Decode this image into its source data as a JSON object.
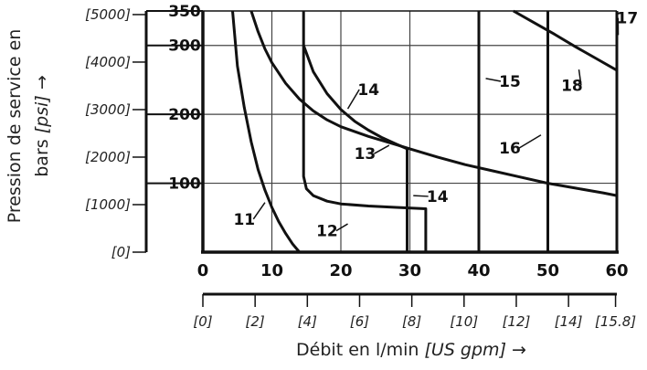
{
  "chart_data": {
    "type": "line",
    "ylabel_line1": "Pression de service en",
    "ylabel_line2_pre": "bars ",
    "ylabel_line2_unit": "[psi]",
    "ylabel_line2_arrow": " →",
    "xlabel_pre": "Débit en l/min ",
    "xlabel_unit": "[US gpm]",
    "xlabel_arrow": " →",
    "x_range": [
      0,
      60
    ],
    "y_range": [
      0,
      350
    ],
    "x_ticks": [
      "0",
      "10",
      "20",
      "30",
      "40",
      "50",
      "60"
    ],
    "x_tick_values": [
      0,
      10,
      20,
      30,
      40,
      50,
      60
    ],
    "y_ticks_bar": [
      "100",
      "200",
      "300",
      "350"
    ],
    "y_tick_values_bar": [
      100,
      200,
      300,
      350
    ],
    "y_ticks_psi": [
      "[0]",
      "[1000]",
      "[2000]",
      "[3000]",
      "[4000]",
      "[5000]"
    ],
    "y_tick_values_psi": [
      0,
      1000,
      2000,
      3000,
      4000,
      5000
    ],
    "x_ticks_gpm": [
      "[0]",
      "[2]",
      "[4]",
      "[6]",
      "[8]",
      "[10]",
      "[12]",
      "[14]",
      "[15.8]"
    ],
    "x_tick_values_gpm": [
      0,
      2,
      4,
      6,
      8,
      10,
      12,
      14,
      15.8
    ],
    "grid": true,
    "series": [
      {
        "name": "11",
        "points": [
          [
            4.3,
            350
          ],
          [
            5,
            270
          ],
          [
            6,
            210
          ],
          [
            7,
            160
          ],
          [
            8,
            120
          ],
          [
            9,
            90
          ],
          [
            10,
            65
          ],
          [
            11,
            44
          ],
          [
            12,
            27
          ],
          [
            13,
            12
          ],
          [
            14,
            0
          ]
        ]
      },
      {
        "name": "12",
        "points": [
          [
            14.6,
            350
          ],
          [
            14.6,
            250
          ],
          [
            14.6,
            110
          ],
          [
            15,
            92
          ],
          [
            16,
            82
          ],
          [
            18,
            74
          ],
          [
            20,
            70
          ],
          [
            24,
            67
          ],
          [
            28,
            65
          ],
          [
            32.3,
            63
          ],
          [
            32.3,
            0
          ]
        ]
      },
      {
        "name": "13",
        "points": [
          [
            7,
            350
          ],
          [
            8,
            320
          ],
          [
            9,
            295
          ],
          [
            10,
            275
          ],
          [
            12,
            245
          ],
          [
            14,
            222
          ],
          [
            16,
            205
          ],
          [
            18,
            192
          ],
          [
            20,
            182
          ],
          [
            24,
            168
          ],
          [
            28,
            156
          ],
          [
            30,
            150
          ]
        ]
      },
      {
        "name": "14",
        "points": [
          [
            14.6,
            300
          ],
          [
            16,
            262
          ],
          [
            18,
            230
          ],
          [
            20,
            207
          ],
          [
            22,
            190
          ],
          [
            24,
            177
          ],
          [
            26,
            166
          ],
          [
            28,
            157
          ],
          [
            29.6,
            150
          ],
          [
            29.6,
            0
          ]
        ]
      },
      {
        "name": "15",
        "points": [
          [
            40,
            350
          ],
          [
            40,
            0
          ]
        ]
      },
      {
        "name": "16",
        "points": [
          [
            30,
            150
          ],
          [
            34,
            138
          ],
          [
            38,
            127
          ],
          [
            42,
            118
          ],
          [
            46,
            109
          ],
          [
            50,
            100
          ],
          [
            54,
            93
          ],
          [
            58,
            86
          ],
          [
            60,
            82
          ]
        ]
      },
      {
        "name": "17",
        "points": [
          [
            60,
            350
          ],
          [
            60,
            0
          ]
        ]
      },
      {
        "name": "18",
        "points": [
          [
            45,
            350
          ],
          [
            48,
            333
          ],
          [
            51,
            316
          ],
          [
            54,
            298
          ],
          [
            57,
            281
          ],
          [
            60,
            264
          ]
        ]
      },
      {
        "name": "",
        "points": [
          [
            50,
            350
          ],
          [
            50,
            0
          ]
        ]
      }
    ],
    "curve_labels": [
      {
        "text": "11",
        "x": 6.0,
        "y": 40,
        "lx": 9.0,
        "ly": 72
      },
      {
        "text": "12",
        "x": 18.0,
        "y": 23,
        "lx": 21.0,
        "ly": 41
      },
      {
        "text": "13",
        "x": 23.5,
        "y": 135,
        "lx": 27.0,
        "ly": 155
      },
      {
        "text": "14",
        "x": 24.0,
        "y": 228,
        "lx": 21.0,
        "ly": 208
      },
      {
        "text": "14",
        "x": 34.0,
        "y": 73,
        "lx": 30.5,
        "ly": 82
      },
      {
        "text": "15",
        "x": 44.5,
        "y": 240,
        "lx": 41.0,
        "ly": 252
      },
      {
        "text": "16",
        "x": 44.5,
        "y": 143,
        "lx": 49.0,
        "ly": 170
      },
      {
        "text": "17",
        "x": 61.5,
        "y": 332,
        "lx": 60.2,
        "ly": 315
      },
      {
        "text": "18",
        "x": 53.5,
        "y": 234,
        "lx": 54.5,
        "ly": 265
      }
    ]
  }
}
